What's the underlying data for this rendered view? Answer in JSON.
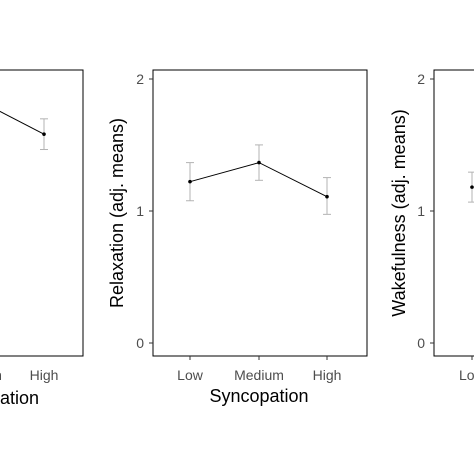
{
  "chart_data": [
    {
      "type": "line",
      "panel": "left (cropped)",
      "categories": [
        "Medium",
        "High"
      ],
      "tick_labels_x": [
        "n",
        "High"
      ],
      "values": [
        1.76,
        1.59
      ],
      "error_low": [
        null,
        1.48
      ],
      "error_high": [
        null,
        1.7
      ],
      "xlabel": "ation",
      "ylabel": "",
      "ylim": [
        0,
        2.05
      ],
      "yticks": [],
      "grid": false
    },
    {
      "type": "line",
      "panel": "middle",
      "categories": [
        "Low",
        "Medium",
        "High"
      ],
      "tick_labels_x": [
        "Low",
        "Medium",
        "High"
      ],
      "values": [
        1.23,
        1.37,
        1.12
      ],
      "error_low": [
        1.09,
        1.24,
        0.99
      ],
      "error_high": [
        1.37,
        1.5,
        1.26
      ],
      "xlabel": "Syncopation",
      "ylabel": "Relaxation (adj. means)",
      "ylim": [
        -0.05,
        2.05
      ],
      "yticks": [
        "0",
        "1",
        "2"
      ],
      "grid": false
    },
    {
      "type": "line",
      "panel": "right (cropped)",
      "categories": [
        "Low"
      ],
      "tick_labels_x": [
        "Lo"
      ],
      "values": [
        1.19
      ],
      "error_low": [
        1.08
      ],
      "error_high": [
        1.3
      ],
      "xlabel": "",
      "ylabel": "Wakefulness (adj. means)",
      "ylim": [
        -0.05,
        2.05
      ],
      "yticks": [
        "0",
        "1",
        "2"
      ],
      "grid": false
    }
  ],
  "colors": {
    "line": "#000000",
    "error_bar": "#b3b3b3",
    "axis": "#000000",
    "tick_text": "#4d4d4d"
  }
}
